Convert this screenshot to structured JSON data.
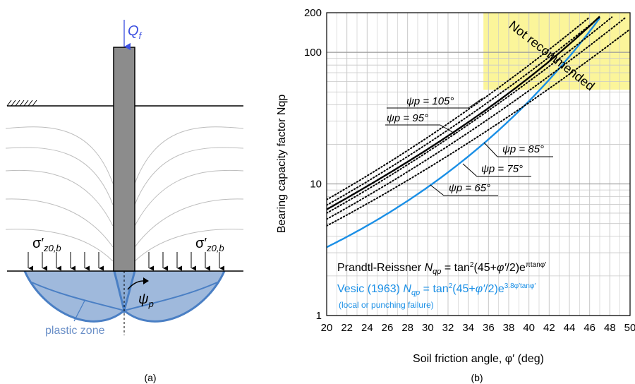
{
  "figure": {
    "panel_a": {
      "caption": "(a)",
      "load_label": "Q",
      "load_sub": "f",
      "stress_symbol": "σ′",
      "stress_sub": "z0,b",
      "angle_symbol": "ψ",
      "angle_sub": "p",
      "zone_label": "plastic zone"
    },
    "panel_b": {
      "caption": "(b)",
      "not_recommended": "Not recommended",
      "psi_labels": [
        {
          "text": "ψp = 105°",
          "value": 105
        },
        {
          "text": "ψp = 95°",
          "value": 95
        },
        {
          "text": "ψp = 85°",
          "value": 85
        },
        {
          "text": "ψp = 75°",
          "value": 75
        },
        {
          "text": "ψp = 65°",
          "value": 65
        }
      ],
      "eq1_name": "Prandtl-Reissner",
      "eq2_name": "Vesic (1963)",
      "eq2_note": "(local or punching failure)"
    }
  },
  "chart_data": {
    "type": "line",
    "xlabel": "Soil friction angle, φ′ (deg)",
    "ylabel": "Bearing capacity factor Nqp",
    "xlim": [
      20,
      50
    ],
    "ylim": [
      1,
      200
    ],
    "yscale": "log",
    "x_ticks": [
      20,
      22,
      24,
      26,
      28,
      30,
      32,
      34,
      36,
      38,
      40,
      42,
      44,
      46,
      48,
      50
    ],
    "y_ticks": [
      1,
      10,
      100,
      200
    ],
    "grid": true,
    "not_recommended_region": {
      "x": [
        35.5,
        50
      ],
      "y": [
        52,
        200
      ]
    },
    "series": [
      {
        "name": "Prandtl-Reissner Nqp = tan²(45+φ′/2)e^(πtanφ′)",
        "color": "#000000",
        "style": "solid",
        "x": [
          20,
          24,
          28,
          32,
          36,
          40,
          44,
          47
        ],
        "y": [
          6.4,
          9.6,
          14.7,
          23.2,
          37.8,
          64.2,
          115.3,
          185
        ]
      },
      {
        "name": "Vesic (1963) Nqp = tan²(45+φ′/2)e^(3.8φ′tanφ′)",
        "color": "#1a8fe6",
        "style": "solid",
        "x": [
          20,
          24,
          28,
          32,
          36,
          40,
          44,
          46,
          47
        ],
        "y": [
          3.4,
          4.8,
          7.1,
          11.1,
          18.7,
          35.2,
          77.1,
          122,
          160
        ]
      },
      {
        "name": "ψp = 105°",
        "color": "#000000",
        "style": "dotted",
        "x": [
          20,
          46
        ],
        "y": [
          7.6,
          185
        ]
      },
      {
        "name": "ψp = 95°",
        "color": "#000000",
        "style": "dotted",
        "x": [
          20,
          47
        ],
        "y": [
          6.9,
          185
        ]
      },
      {
        "name": "ψp = 85°",
        "color": "#000000",
        "style": "dotted",
        "x": [
          20,
          48.2
        ],
        "y": [
          6.0,
          185
        ]
      },
      {
        "name": "ψp = 75°",
        "color": "#000000",
        "style": "dotted",
        "x": [
          20,
          49.6
        ],
        "y": [
          5.4,
          185
        ]
      },
      {
        "name": "ψp = 65°",
        "color": "#000000",
        "style": "dotted",
        "x": [
          20,
          50
        ],
        "y": [
          4.8,
          150
        ]
      }
    ]
  }
}
